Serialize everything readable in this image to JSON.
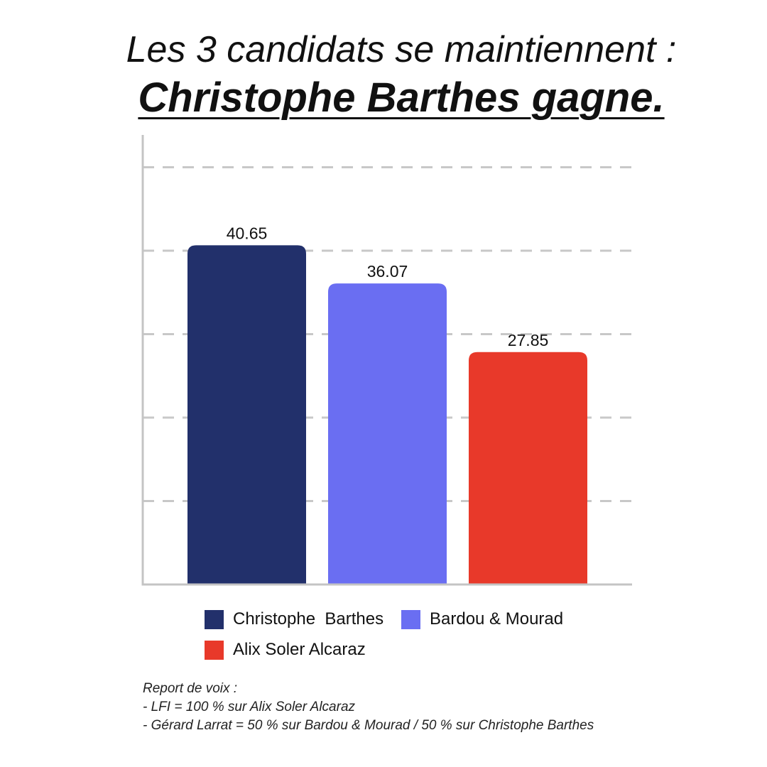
{
  "title": {
    "line1": "Les 3 candidats se maintiennent :",
    "line2": "Christophe Barthes gagne."
  },
  "chart_data": {
    "type": "bar",
    "categories": [
      "Christophe  Barthes",
      "Bardou & Mourad",
      "Alix Soler Alcaraz"
    ],
    "values": [
      40.65,
      36.07,
      27.85
    ],
    "value_labels": [
      "40.65",
      "36.07",
      "27.85"
    ],
    "colors": [
      "#22306b",
      "#6a6ef2",
      "#e8392a"
    ],
    "ylim": [
      0,
      54
    ],
    "gridlines": [
      10,
      20,
      30,
      40,
      50
    ],
    "grid": true,
    "xlabel": "",
    "ylabel": "",
    "legend_position": "bottom"
  },
  "legend": {
    "items": [
      {
        "label": "Christophe  Barthes",
        "color": "#22306b"
      },
      {
        "label": "Bardou & Mourad",
        "color": "#6a6ef2"
      },
      {
        "label": "Alix Soler Alcaraz",
        "color": "#e8392a"
      }
    ]
  },
  "notes": {
    "heading": "Report de voix :",
    "lines": [
      "-  LFI = 100 % sur Alix Soler Alcaraz",
      "-  Gérard Larrat = 50 % sur Bardou & Mourad / 50 % sur Christophe Barthes"
    ]
  }
}
